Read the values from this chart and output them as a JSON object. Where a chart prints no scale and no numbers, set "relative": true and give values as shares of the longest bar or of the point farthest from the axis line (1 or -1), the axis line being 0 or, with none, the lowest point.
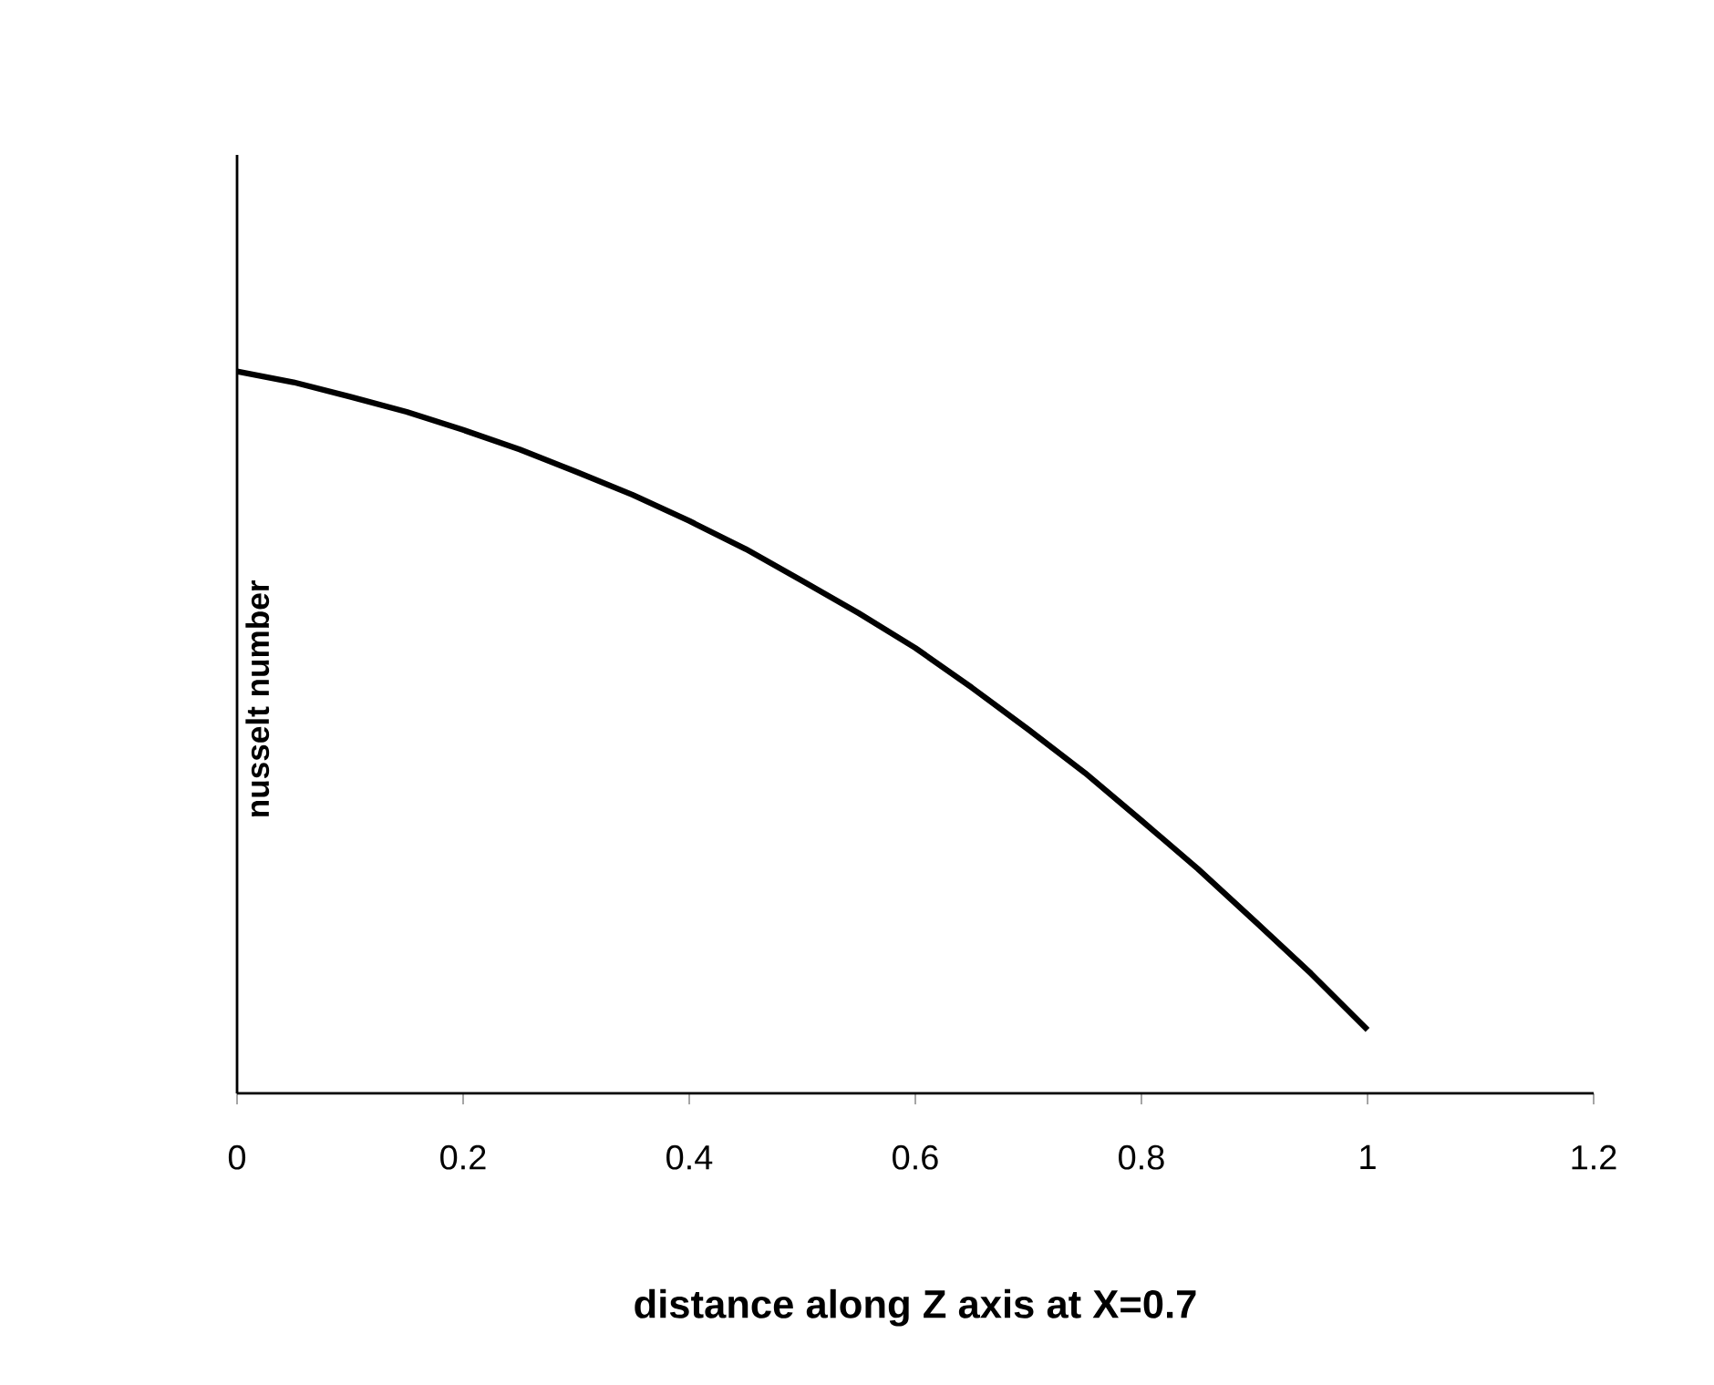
{
  "chart_data": {
    "type": "line",
    "relative": true,
    "xlabel": "distance along  Z axis at X=0.7",
    "ylabel": "nusselt number",
    "x": [
      0,
      0.05,
      0.1,
      0.15,
      0.2,
      0.25,
      0.3,
      0.35,
      0.4,
      0.45,
      0.5,
      0.55,
      0.6,
      0.65,
      0.7,
      0.75,
      0.8,
      0.85,
      0.9,
      0.95,
      1
    ],
    "series": [
      {
        "color": "#000000",
        "values": [
          1.0,
          0.985,
          0.965,
          0.944,
          0.919,
          0.892,
          0.861,
          0.829,
          0.793,
          0.754,
          0.71,
          0.665,
          0.617,
          0.562,
          0.504,
          0.444,
          0.378,
          0.311,
          0.239,
          0.166,
          0.088
        ]
      }
    ],
    "xlim": [
      0,
      1.2
    ],
    "xticks": [
      0,
      0.2,
      0.4,
      0.6,
      0.8,
      1,
      1.2
    ],
    "grid": false,
    "marker": "none",
    "line_style": "solid"
  }
}
